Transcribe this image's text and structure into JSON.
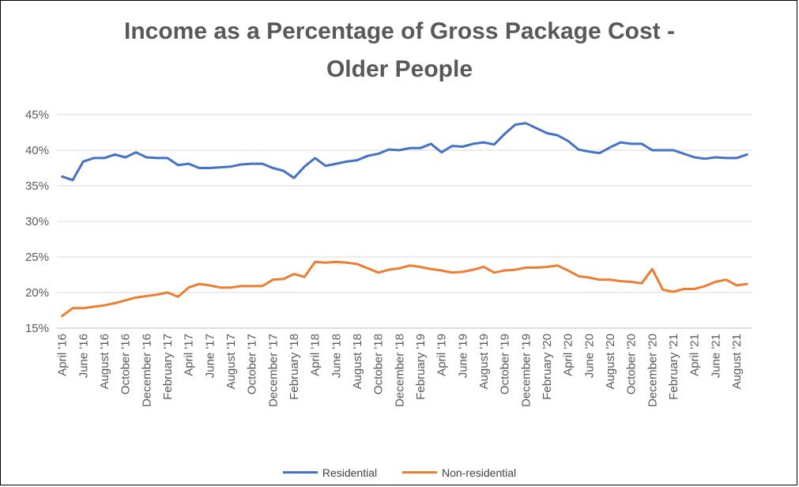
{
  "chart_data": {
    "type": "line",
    "title_line1": "Income as a Percentage of Gross Package Cost -",
    "title_line2": "Older People",
    "xlabel": "",
    "ylabel": "",
    "ylim": [
      15,
      45
    ],
    "y_ticks": [
      "15%",
      "20%",
      "25%",
      "30%",
      "35%",
      "40%",
      "45%"
    ],
    "grid": true,
    "legend_position": "bottom",
    "x_tick_labels": [
      "April '16",
      "June '16",
      "August '16",
      "October '16",
      "December '16",
      "February '17",
      "April '17",
      "June '17",
      "August '17",
      "October '17",
      "December '17",
      "February '18",
      "April '18",
      "June '18",
      "August '18",
      "October '18",
      "December '18",
      "February '19",
      "April '19",
      "June '19",
      "August '19",
      "October '19",
      "December '19",
      "February '20",
      "April '20",
      "June '20",
      "August '20",
      "October '20",
      "December '20",
      "February '21",
      "April '21",
      "June '21",
      "August '21"
    ],
    "series": [
      {
        "name": "Residential",
        "color": "#4472C4",
        "values": [
          36.3,
          35.8,
          38.4,
          38.9,
          38.9,
          39.4,
          39.0,
          39.7,
          39.0,
          38.9,
          38.9,
          37.9,
          38.1,
          37.5,
          37.5,
          37.6,
          37.7,
          38.0,
          38.1,
          38.1,
          37.5,
          37.1,
          36.1,
          37.7,
          38.9,
          37.8,
          38.1,
          38.4,
          38.6,
          39.2,
          39.5,
          40.1,
          40.0,
          40.3,
          40.3,
          40.9,
          39.7,
          40.6,
          40.5,
          40.9,
          41.1,
          40.8,
          42.3,
          43.6,
          43.8,
          43.1,
          42.4,
          42.1,
          41.3,
          40.1,
          39.8,
          39.6,
          40.4,
          41.1,
          40.9,
          40.9,
          40.0,
          40.0,
          40.0,
          39.5,
          39.0,
          38.8,
          39.0,
          38.9,
          38.9,
          39.4
        ]
      },
      {
        "name": "Non-residential",
        "color": "#ED7D31",
        "values": [
          16.7,
          17.8,
          17.8,
          18.0,
          18.2,
          18.5,
          18.9,
          19.3,
          19.5,
          19.7,
          20.0,
          19.4,
          20.7,
          21.2,
          21.0,
          20.7,
          20.7,
          20.9,
          20.9,
          20.9,
          21.8,
          21.9,
          22.6,
          22.2,
          24.3,
          24.2,
          24.3,
          24.2,
          24.0,
          23.4,
          22.8,
          23.2,
          23.4,
          23.8,
          23.6,
          23.3,
          23.1,
          22.8,
          22.9,
          23.2,
          23.6,
          22.8,
          23.1,
          23.2,
          23.5,
          23.5,
          23.6,
          23.8,
          23.1,
          22.3,
          22.1,
          21.8,
          21.8,
          21.6,
          21.5,
          21.3,
          23.3,
          20.4,
          20.1,
          20.5,
          20.5,
          20.9,
          21.5,
          21.8,
          21.0,
          21.2
        ]
      }
    ]
  }
}
